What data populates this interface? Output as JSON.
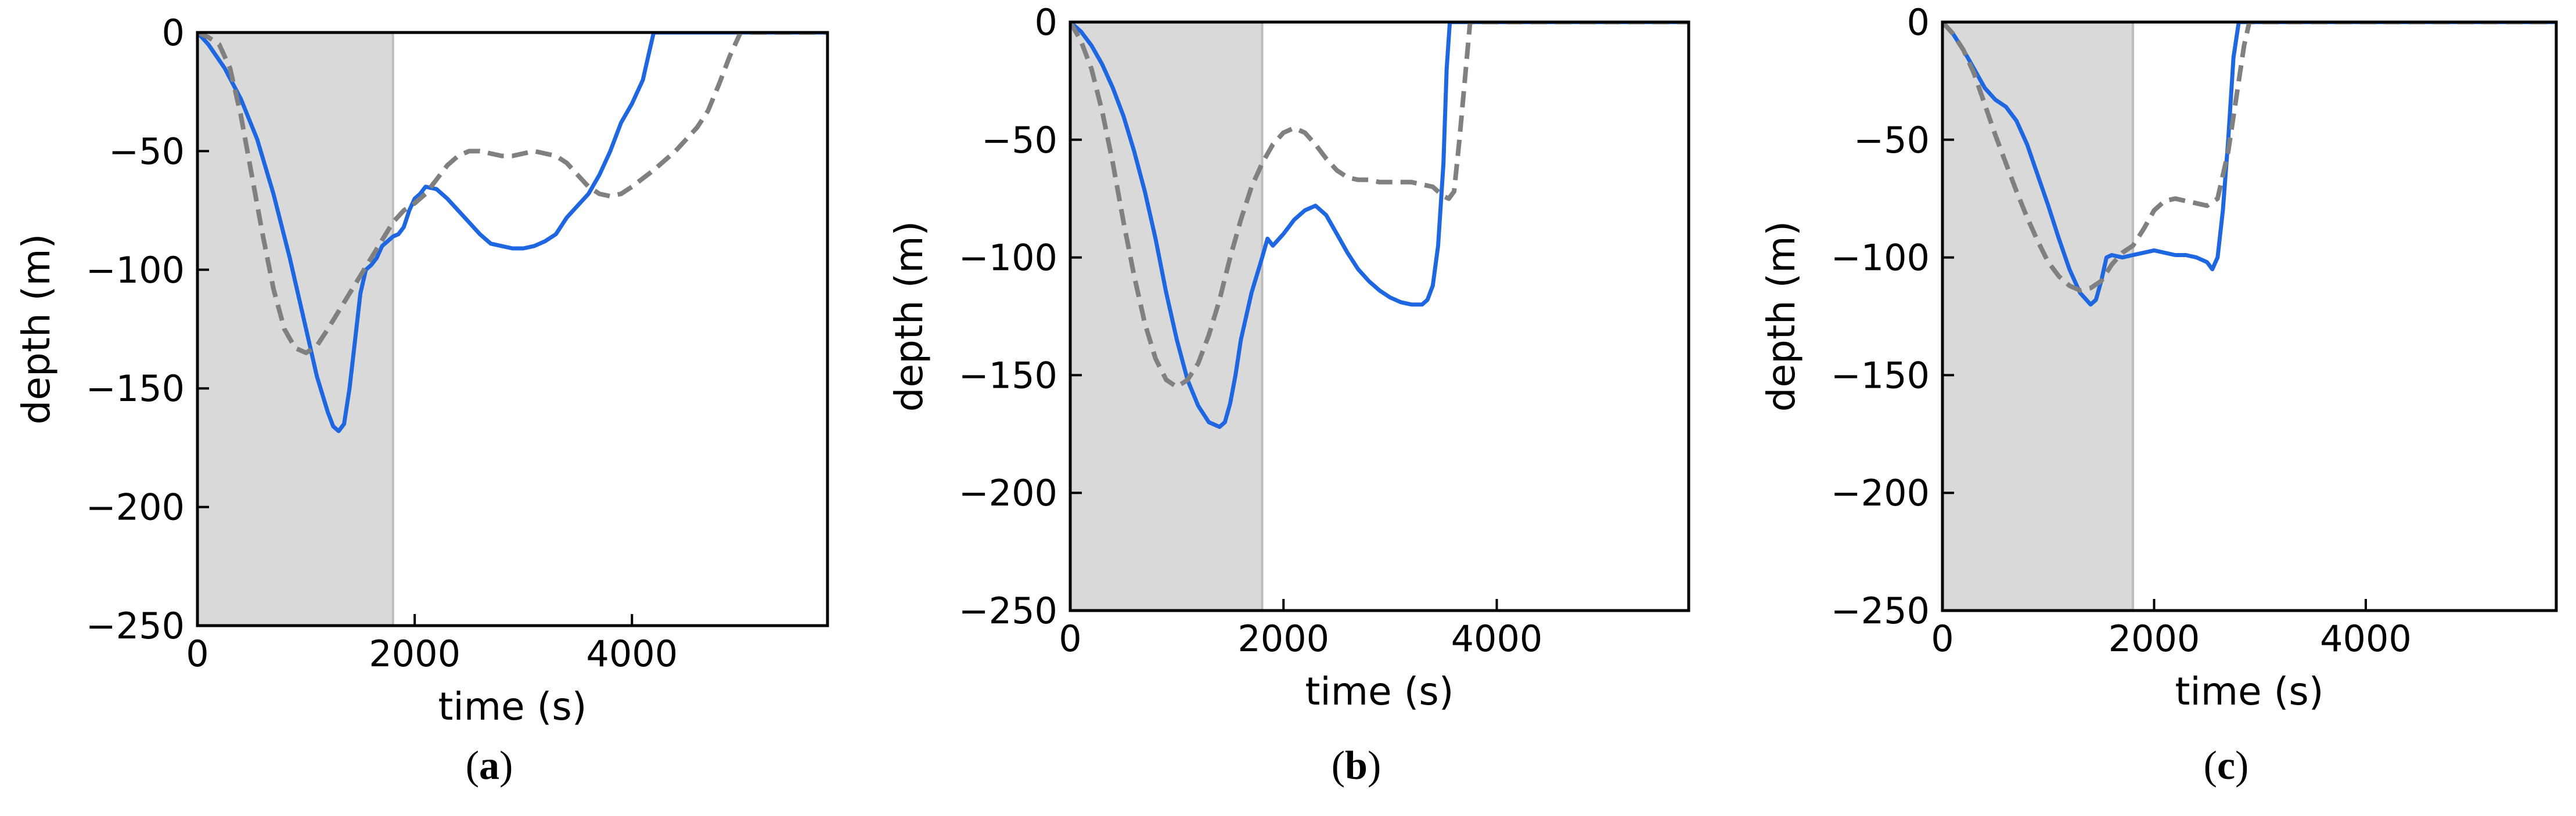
{
  "chart_data": [
    {
      "type": "line",
      "panel_label": [
        "(",
        "a",
        ")"
      ],
      "xlabel": "time (s)",
      "ylabel": "depth (m)",
      "xlim": [
        0,
        5800
      ],
      "ylim": [
        -250,
        0
      ],
      "xticks": [
        0,
        2000,
        4000
      ],
      "yticks": [
        0,
        -50,
        -100,
        -150,
        -200,
        -250
      ],
      "xtick_labels": [
        "0",
        "2000",
        "4000"
      ],
      "ytick_labels": [
        "0",
        "−50",
        "−100",
        "−150",
        "−200",
        "−250"
      ],
      "shaded_region": {
        "x": [
          0,
          1800
        ],
        "color": "#d9d9d9"
      },
      "series": [
        {
          "style": "solid",
          "color": "#1f67e0",
          "x": [
            0,
            100,
            250,
            400,
            550,
            700,
            850,
            1000,
            1100,
            1200,
            1250,
            1300,
            1350,
            1400,
            1450,
            1500,
            1550,
            1600,
            1650,
            1700,
            1750,
            1800,
            1850,
            1900,
            1950,
            2000,
            2050,
            2100,
            2200,
            2300,
            2400,
            2500,
            2600,
            2700,
            2800,
            2900,
            3000,
            3100,
            3200,
            3300,
            3400,
            3500,
            3600,
            3700,
            3800,
            3900,
            4000,
            4100,
            4150,
            4200,
            4250,
            4300,
            4500,
            5000,
            5500,
            5800
          ],
          "y": [
            0,
            -5,
            -15,
            -28,
            -45,
            -68,
            -95,
            -125,
            -145,
            -160,
            -166,
            -168,
            -165,
            -150,
            -130,
            -110,
            -100,
            -98,
            -95,
            -90,
            -88,
            -86,
            -85,
            -82,
            -75,
            -70,
            -68,
            -65,
            -66,
            -70,
            -75,
            -80,
            -85,
            -89,
            -90,
            -91,
            -91,
            -90,
            -88,
            -85,
            -78,
            -73,
            -68,
            -60,
            -50,
            -38,
            -30,
            -20,
            -10,
            0,
            0,
            0,
            0,
            0,
            0,
            0
          ]
        },
        {
          "style": "dashed",
          "color": "#808080",
          "x": [
            0,
            100,
            200,
            300,
            400,
            500,
            600,
            700,
            800,
            900,
            1000,
            1100,
            1200,
            1400,
            1600,
            1800,
            1900,
            2000,
            2100,
            2200,
            2300,
            2400,
            2500,
            2600,
            2700,
            2800,
            2900,
            3000,
            3100,
            3200,
            3300,
            3400,
            3500,
            3600,
            3700,
            3800,
            3900,
            4000,
            4200,
            4400,
            4600,
            4700,
            4800,
            4900,
            5000,
            5500,
            5800
          ],
          "y": [
            0,
            -2,
            -5,
            -15,
            -35,
            -60,
            -85,
            -108,
            -125,
            -133,
            -135,
            -132,
            -125,
            -110,
            -95,
            -80,
            -75,
            -72,
            -68,
            -62,
            -56,
            -52,
            -50,
            -50,
            -51,
            -52,
            -52,
            -51,
            -50,
            -51,
            -52,
            -55,
            -60,
            -65,
            -68,
            -69,
            -68,
            -65,
            -58,
            -50,
            -40,
            -33,
            -22,
            -10,
            0,
            0,
            0
          ]
        }
      ]
    },
    {
      "type": "line",
      "panel_label": [
        "(",
        "b",
        ")"
      ],
      "xlabel": "time (s)",
      "ylabel": "depth (m)",
      "xlim": [
        0,
        5800
      ],
      "ylim": [
        -250,
        0
      ],
      "xticks": [
        0,
        2000,
        4000
      ],
      "yticks": [
        0,
        -50,
        -100,
        -150,
        -200,
        -250
      ],
      "xtick_labels": [
        "0",
        "2000",
        "4000"
      ],
      "ytick_labels": [
        "0",
        "−50",
        "−100",
        "−150",
        "−200",
        "−250"
      ],
      "shaded_region": {
        "x": [
          0,
          1800
        ],
        "color": "#d9d9d9"
      },
      "series": [
        {
          "style": "solid",
          "color": "#1f67e0",
          "x": [
            0,
            100,
            200,
            300,
            400,
            500,
            600,
            700,
            800,
            900,
            1000,
            1100,
            1200,
            1300,
            1400,
            1450,
            1500,
            1550,
            1600,
            1700,
            1800,
            1850,
            1900,
            2000,
            2100,
            2200,
            2300,
            2400,
            2500,
            2600,
            2700,
            2800,
            2900,
            3000,
            3100,
            3200,
            3300,
            3350,
            3400,
            3450,
            3500,
            3530,
            3560,
            3600,
            3700,
            4000,
            5000,
            5800
          ],
          "y": [
            0,
            -4,
            -10,
            -18,
            -28,
            -40,
            -55,
            -72,
            -92,
            -115,
            -135,
            -152,
            -163,
            -170,
            -172,
            -170,
            -162,
            -150,
            -135,
            -115,
            -100,
            -92,
            -95,
            -90,
            -84,
            -80,
            -78,
            -82,
            -90,
            -98,
            -105,
            -110,
            -114,
            -117,
            -119,
            -120,
            -120,
            -118,
            -112,
            -95,
            -60,
            -20,
            0,
            0,
            0,
            0,
            0,
            0
          ]
        },
        {
          "style": "dashed",
          "color": "#808080",
          "x": [
            0,
            100,
            200,
            300,
            400,
            500,
            600,
            700,
            800,
            900,
            1000,
            1100,
            1200,
            1300,
            1400,
            1500,
            1600,
            1700,
            1800,
            1900,
            2000,
            2100,
            2200,
            2300,
            2400,
            2500,
            2600,
            2700,
            2800,
            2900,
            3000,
            3100,
            3200,
            3300,
            3400,
            3500,
            3550,
            3600,
            3650,
            3700,
            3750,
            4000,
            5000,
            5800
          ],
          "y": [
            0,
            -8,
            -20,
            -38,
            -60,
            -85,
            -108,
            -128,
            -143,
            -152,
            -155,
            -152,
            -145,
            -133,
            -118,
            -100,
            -84,
            -70,
            -60,
            -52,
            -47,
            -45,
            -47,
            -52,
            -58,
            -63,
            -66,
            -67,
            -67,
            -68,
            -68,
            -68,
            -68,
            -69,
            -70,
            -74,
            -75,
            -72,
            -50,
            -25,
            0,
            0,
            0,
            0
          ]
        }
      ]
    },
    {
      "type": "line",
      "panel_label": [
        "(",
        "c",
        ")"
      ],
      "xlabel": "time (s)",
      "ylabel": "depth (m)",
      "xlim": [
        0,
        5800
      ],
      "ylim": [
        -250,
        0
      ],
      "xticks": [
        0,
        2000,
        4000
      ],
      "yticks": [
        0,
        -50,
        -100,
        -150,
        -200,
        -250
      ],
      "xtick_labels": [
        "0",
        "2000",
        "4000"
      ],
      "ytick_labels": [
        "0",
        "−50",
        "−100",
        "−150",
        "−200",
        "−250"
      ],
      "shaded_region": {
        "x": [
          0,
          1800
        ],
        "color": "#d9d9d9"
      },
      "series": [
        {
          "style": "solid",
          "color": "#1f67e0",
          "x": [
            0,
            100,
            200,
            300,
            400,
            500,
            600,
            700,
            800,
            900,
            1000,
            1100,
            1200,
            1300,
            1400,
            1450,
            1500,
            1550,
            1600,
            1700,
            1800,
            1900,
            2000,
            2100,
            2200,
            2300,
            2400,
            2500,
            2550,
            2600,
            2650,
            2700,
            2750,
            2800,
            2900,
            3000,
            4000,
            5000,
            5800
          ],
          "y": [
            0,
            -5,
            -12,
            -20,
            -28,
            -33,
            -36,
            -42,
            -52,
            -65,
            -78,
            -92,
            -105,
            -115,
            -120,
            -118,
            -110,
            -100,
            -99,
            -100,
            -99,
            -98,
            -97,
            -98,
            -99,
            -99,
            -100,
            -102,
            -105,
            -100,
            -80,
            -50,
            -15,
            0,
            0,
            0,
            0,
            0,
            0
          ]
        },
        {
          "style": "dashed",
          "color": "#808080",
          "x": [
            0,
            100,
            200,
            300,
            400,
            500,
            600,
            700,
            800,
            900,
            1000,
            1100,
            1200,
            1300,
            1400,
            1500,
            1600,
            1700,
            1800,
            1900,
            2000,
            2100,
            2200,
            2300,
            2400,
            2500,
            2600,
            2700,
            2800,
            2850,
            2900,
            3000,
            4000,
            5000,
            5800
          ],
          "y": [
            0,
            -5,
            -12,
            -22,
            -35,
            -48,
            -60,
            -72,
            -83,
            -93,
            -102,
            -108,
            -112,
            -114,
            -113,
            -110,
            -103,
            -98,
            -95,
            -88,
            -80,
            -76,
            -75,
            -76,
            -77,
            -78,
            -75,
            -55,
            -25,
            -10,
            0,
            0,
            0,
            0,
            0
          ]
        }
      ]
    }
  ]
}
